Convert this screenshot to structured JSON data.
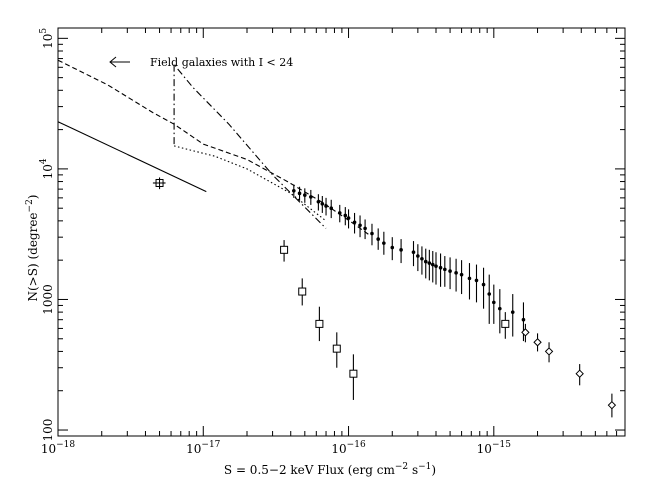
{
  "chart_data": {
    "type": "scatter",
    "title": "",
    "xlabel_parts": [
      "S = 0.5−2 keV Flux (erg cm",
      "−2",
      " s",
      "−1",
      ")"
    ],
    "ylabel_parts": [
      "N(>S) (degree",
      "−2",
      ")"
    ],
    "x_scale": "log",
    "y_scale": "log",
    "xlim": [
      1e-18,
      8e-15
    ],
    "ylim": [
      90,
      120000
    ],
    "x_ticks": [
      {
        "value": 1e-18,
        "base": "10",
        "exp": "−18"
      },
      {
        "value": 1e-17,
        "base": "10",
        "exp": "−17"
      },
      {
        "value": 1e-16,
        "base": "10",
        "exp": "−16"
      },
      {
        "value": 1e-15,
        "base": "10",
        "exp": "−15"
      }
    ],
    "y_ticks": [
      {
        "value": 100,
        "base": "100",
        "exp": ""
      },
      {
        "value": 1000,
        "base": "1000",
        "exp": ""
      },
      {
        "value": 10000,
        "base": "10",
        "exp": "4"
      },
      {
        "value": 100000,
        "base": "10",
        "exp": "5"
      }
    ],
    "annotation": {
      "text": "Field galaxies with I < 24",
      "arrow": "left"
    },
    "grid": false,
    "series": [
      {
        "marker": "dot",
        "points": [
          {
            "x": 4.2e-17,
            "y": 6800,
            "yerr": [
              6000,
              7600
            ]
          },
          {
            "x": 4.6e-17,
            "y": 6500,
            "yerr": [
              5700,
              7300
            ]
          },
          {
            "x": 5e-17,
            "y": 6300,
            "yerr": [
              5500,
              7100
            ]
          },
          {
            "x": 5.5e-17,
            "y": 6100,
            "yerr": [
              5300,
              6900
            ]
          },
          {
            "x": 6.2e-17,
            "y": 5600,
            "yerr": [
              4800,
              6400
            ]
          },
          {
            "x": 6.6e-17,
            "y": 5400,
            "yerr": [
              4600,
              6200
            ]
          },
          {
            "x": 7e-17,
            "y": 5200,
            "yerr": [
              4400,
              6000
            ]
          },
          {
            "x": 7.6e-17,
            "y": 5000,
            "yerr": [
              4200,
              5800
            ]
          },
          {
            "x": 8.7e-17,
            "y": 4600,
            "yerr": [
              3900,
              5300
            ]
          },
          {
            "x": 9.5e-17,
            "y": 4400,
            "yerr": [
              3700,
              5100
            ]
          },
          {
            "x": 1e-16,
            "y": 4200,
            "yerr": [
              3500,
              4900
            ]
          },
          {
            "x": 1.1e-16,
            "y": 3900,
            "yerr": [
              3200,
              4600
            ]
          },
          {
            "x": 1.2e-16,
            "y": 3700,
            "yerr": [
              3000,
              4400
            ]
          },
          {
            "x": 1.3e-16,
            "y": 3500,
            "yerr": [
              2900,
              4100
            ]
          },
          {
            "x": 1.45e-16,
            "y": 3200,
            "yerr": [
              2600,
              3800
            ]
          },
          {
            "x": 1.6e-16,
            "y": 2900,
            "yerr": [
              2400,
              3500
            ]
          },
          {
            "x": 1.75e-16,
            "y": 2700,
            "yerr": [
              2200,
              3300
            ]
          },
          {
            "x": 2e-16,
            "y": 2500,
            "yerr": [
              2000,
              3000
            ]
          },
          {
            "x": 2.3e-16,
            "y": 2400,
            "yerr": [
              1900,
              2900
            ]
          },
          {
            "x": 2.8e-16,
            "y": 2300,
            "yerr": [
              1800,
              2800
            ]
          },
          {
            "x": 3e-16,
            "y": 2150,
            "yerr": [
              1650,
              2650
            ]
          },
          {
            "x": 3.2e-16,
            "y": 2050,
            "yerr": [
              1550,
              2550
            ]
          },
          {
            "x": 3.4e-16,
            "y": 1950,
            "yerr": [
              1450,
              2450
            ]
          },
          {
            "x": 3.6e-16,
            "y": 1900,
            "yerr": [
              1400,
              2400
            ]
          },
          {
            "x": 3.8e-16,
            "y": 1850,
            "yerr": [
              1350,
              2350
            ]
          },
          {
            "x": 4e-16,
            "y": 1800,
            "yerr": [
              1300,
              2300
            ]
          },
          {
            "x": 4.3e-16,
            "y": 1750,
            "yerr": [
              1250,
              2250
            ]
          },
          {
            "x": 4.6e-16,
            "y": 1700,
            "yerr": [
              1250,
              2150
            ]
          },
          {
            "x": 5e-16,
            "y": 1650,
            "yerr": [
              1200,
              2100
            ]
          },
          {
            "x": 5.5e-16,
            "y": 1600,
            "yerr": [
              1150,
              2050
            ]
          },
          {
            "x": 6e-16,
            "y": 1550,
            "yerr": [
              1100,
              2000
            ]
          },
          {
            "x": 6.8e-16,
            "y": 1450,
            "yerr": [
              1000,
              1900
            ]
          },
          {
            "x": 7.6e-16,
            "y": 1400,
            "yerr": [
              950,
              1850
            ]
          },
          {
            "x": 8.5e-16,
            "y": 1300,
            "yerr": [
              850,
              1750
            ]
          },
          {
            "x": 9.3e-16,
            "y": 1100,
            "yerr": [
              650,
              1550
            ]
          },
          {
            "x": 1e-15,
            "y": 950,
            "yerr": [
              650,
              1300
            ]
          },
          {
            "x": 1.1e-15,
            "y": 850,
            "yerr": [
              550,
              1200
            ]
          },
          {
            "x": 1.35e-15,
            "y": 800,
            "yerr": [
              520,
              1100
            ]
          },
          {
            "x": 1.6e-15,
            "y": 700,
            "yerr": [
              480,
              950
            ]
          }
        ]
      },
      {
        "marker": "open-square",
        "points": [
          {
            "x": 3.6e-17,
            "y": 2400,
            "yerr": [
              1950,
              2850
            ]
          },
          {
            "x": 4.8e-17,
            "y": 1150,
            "yerr": [
              900,
              1450
            ]
          },
          {
            "x": 6.3e-17,
            "y": 650,
            "yerr": [
              480,
              880
            ]
          },
          {
            "x": 8.3e-17,
            "y": 420,
            "yerr": [
              300,
              560
            ]
          },
          {
            "x": 1.08e-16,
            "y": 270,
            "yerr": [
              170,
              380
            ]
          },
          {
            "x": 1.2e-15,
            "y": 650,
            "yerr": [
              500,
              800
            ]
          }
        ]
      },
      {
        "marker": "open-diamond",
        "points": [
          {
            "x": 1.65e-15,
            "y": 560,
            "yerr": [
              470,
              650
            ]
          },
          {
            "x": 2e-15,
            "y": 470,
            "yerr": [
              400,
              550
            ]
          },
          {
            "x": 2.4e-15,
            "y": 400,
            "yerr": [
              330,
              470
            ]
          },
          {
            "x": 3.9e-15,
            "y": 270,
            "yerr": [
              220,
              320
            ]
          },
          {
            "x": 6.5e-15,
            "y": 155,
            "yerr": [
              125,
              190
            ]
          }
        ]
      },
      {
        "marker": "open-cross",
        "points": [
          {
            "x": 5e-18,
            "y": 7800,
            "yerr": [
              7000,
              8600
            ],
            "xerr": [
              4.5e-18,
              5.5e-18
            ]
          }
        ]
      }
    ],
    "lines": [
      {
        "style": "solid",
        "x": [
          1e-18,
          1.05e-17
        ],
        "y": [
          23000,
          6700
        ]
      },
      {
        "style": "dashed",
        "x": [
          1e-18,
          2.2e-18,
          4.5e-18,
          6.3e-18,
          1e-17,
          2e-17,
          3.8e-17,
          6.5e-17,
          1.05e-16,
          1.4e-16
        ],
        "y": [
          68000,
          44000,
          27000,
          22000,
          15500,
          11800,
          8000,
          5600,
          3900,
          3100
        ]
      },
      {
        "style": "dash-dot",
        "x": [
          6.3e-18,
          6.3e-18,
          6.6e-18,
          8.5e-18,
          1.5e-17,
          3e-17,
          7e-17
        ],
        "y": [
          15500,
          64000,
          59000,
          42000,
          22000,
          9000,
          3500
        ]
      },
      {
        "style": "dotted",
        "x": [
          6.3e-18,
          8e-18,
          1.2e-17,
          2e-17,
          4e-17,
          7e-17
        ],
        "y": [
          15000,
          14000,
          12500,
          10000,
          6500,
          4000
        ]
      }
    ],
    "colors": {
      "ink": "#000000",
      "background": "#ffffff"
    }
  }
}
